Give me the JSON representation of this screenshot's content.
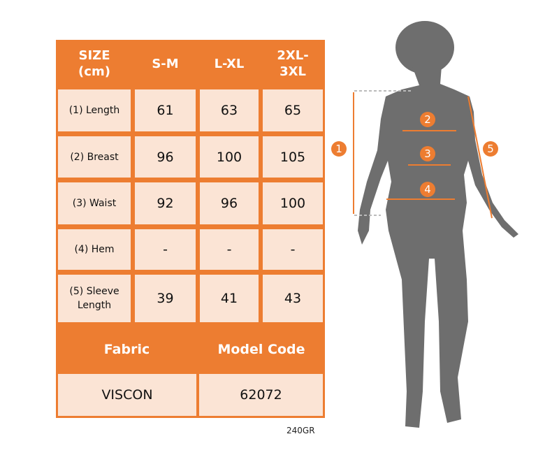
{
  "size_table": {
    "header": [
      "SIZE\n(cm)",
      "S-M",
      "L-XL",
      "2XL-\n3XL"
    ],
    "header_lines": [
      [
        "SIZE",
        "(cm)"
      ],
      [
        "S-M"
      ],
      [
        "L-XL"
      ],
      [
        "2XL-",
        "3XL"
      ]
    ],
    "rows": [
      {
        "label": "(1) Length",
        "values": [
          "61",
          "63",
          "65"
        ]
      },
      {
        "label": "(2) Breast",
        "values": [
          "96",
          "100",
          "105"
        ]
      },
      {
        "label": "(3) Waist",
        "values": [
          "92",
          "96",
          "100"
        ]
      },
      {
        "label": "(4) Hem",
        "values": [
          "-",
          "-",
          "-"
        ]
      },
      {
        "label_lines": [
          "(5) Sleeve",
          "Length"
        ],
        "values": [
          "39",
          "41",
          "43"
        ]
      }
    ]
  },
  "info_table": {
    "fabric_label": "Fabric",
    "model_code_label": "Model Code",
    "fabric_value": "VISCON",
    "model_code_value": "62072"
  },
  "footer_code": "240GR",
  "diagram": {
    "markers": [
      "1",
      "2",
      "3",
      "4",
      "5"
    ]
  },
  "colors": {
    "accent": "#ED7D31",
    "cell": "#FBE4D5",
    "silhouette": "#6E6E6E"
  }
}
